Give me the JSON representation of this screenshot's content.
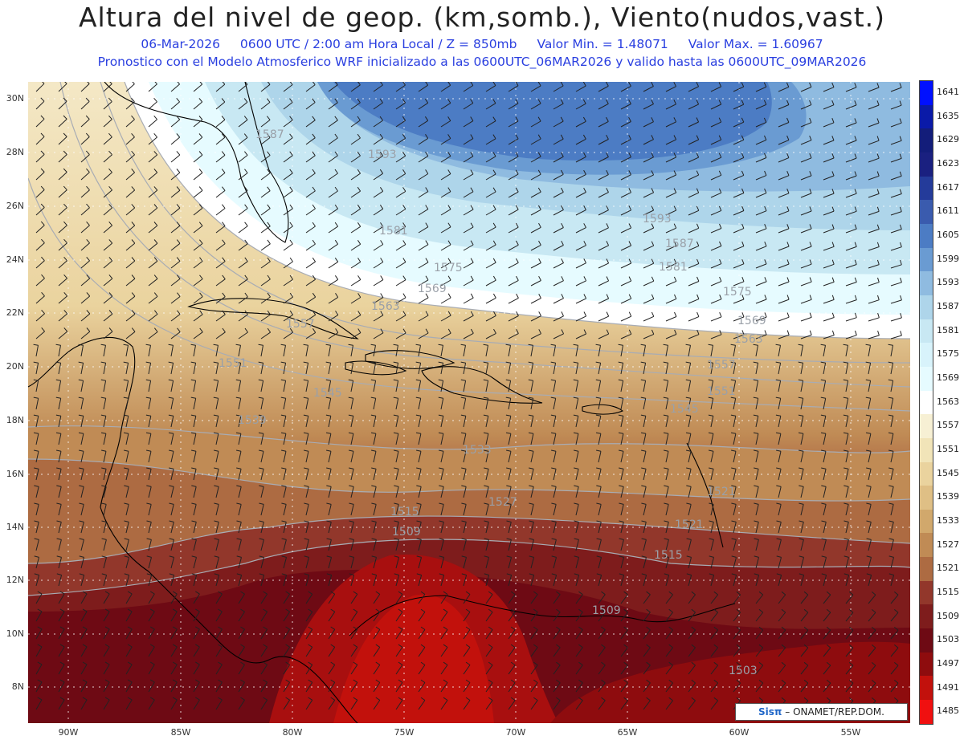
{
  "header": {
    "title": "Altura del nivel de geop. (km,somb.), Viento(nudos,vast.)",
    "date": "06-Mar-2026",
    "time": "0600 UTC / 2:00 am Hora Local / Z = 850mb",
    "min": "Valor Min. = 1.48071",
    "max": "Valor Max. = 1.60967",
    "subtitle2": "Pronostico con el Modelo Atmosferico WRF inicializado a las 0600UTC_06MAR2026 y valido hasta las  0600UTC_09MAR2026"
  },
  "axes": {
    "lat_labels": [
      "30N",
      "28N",
      "26N",
      "24N",
      "22N",
      "20N",
      "18N",
      "16N",
      "14N",
      "12N",
      "10N",
      "8N"
    ],
    "lon_labels": [
      "90W",
      "85W",
      "80W",
      "75W",
      "70W",
      "65W",
      "60W",
      "55W"
    ]
  },
  "legend": {
    "levels": [
      "1641",
      "1635",
      "1629",
      "1623",
      "1617",
      "1611",
      "1605",
      "1599",
      "1593",
      "1587",
      "1581",
      "1575",
      "1569",
      "1563",
      "1557",
      "1551",
      "1545",
      "1539",
      "1533",
      "1527",
      "1521",
      "1515",
      "1509",
      "1503",
      "1497",
      "1491",
      "1485"
    ],
    "colors": [
      "#0010ff",
      "#0a1aa8",
      "#131d7a",
      "#1a2080",
      "#243b9a",
      "#3a5bae",
      "#4c7cc4",
      "#6a9bd2",
      "#8fbbe0",
      "#aed5ea",
      "#c8e8f3",
      "#d8f3fb",
      "#e6fbff",
      "#ffffff",
      "#f7f0d4",
      "#f1e4b8",
      "#ead39e",
      "#dfbf85",
      "#d1a86c",
      "#c08b55",
      "#ad6b42",
      "#92372b",
      "#7e1c1c",
      "#6e0a14",
      "#8e0c0e",
      "#c2110c",
      "#f01010"
    ]
  },
  "contour_labels": [
    "1587",
    "1593",
    "1593",
    "1587",
    "1581",
    "1581",
    "1575",
    "1575",
    "1569",
    "1569",
    "1563",
    "1563",
    "1557",
    "1557",
    "1551",
    "1551",
    "1545",
    "1545",
    "1539",
    "1533",
    "1527",
    "1521",
    "1521",
    "1515",
    "1515",
    "1509",
    "1509",
    "1503"
  ],
  "credit": {
    "brand": "Sisπ",
    "text": "– ONAMET/REP.DOM."
  },
  "colors": {
    "title": "#222222",
    "subtitle": "#2a3fe0",
    "coast": "#000000",
    "grid": "#ffffff"
  }
}
